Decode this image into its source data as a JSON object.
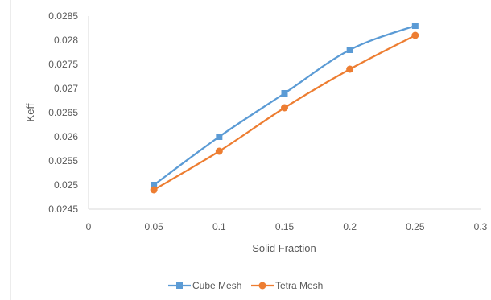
{
  "chart_data": {
    "type": "line",
    "title": "",
    "xlabel": "Solid Fraction",
    "ylabel": "Keff",
    "xlim": [
      0,
      0.3
    ],
    "ylim": [
      0.0245,
      0.0285
    ],
    "x_ticks": [
      "0",
      "0.05",
      "0.1",
      "0.15",
      "0.2",
      "0.25",
      "0.3"
    ],
    "y_ticks": [
      "0.0245",
      "0.025",
      "0.0255",
      "0.026",
      "0.0265",
      "0.027",
      "0.0275",
      "0.028",
      "0.0285"
    ],
    "grid": false,
    "legend_position": "bottom",
    "series": [
      {
        "name": "Cube Mesh",
        "color": "#5B9BD5",
        "marker": "square",
        "x": [
          0.05,
          0.1,
          0.15,
          0.2,
          0.25
        ],
        "values": [
          0.025,
          0.026,
          0.0269,
          0.0278,
          0.0283
        ]
      },
      {
        "name": "Tetra Mesh",
        "color": "#ED7D31",
        "marker": "circle",
        "x": [
          0.05,
          0.1,
          0.15,
          0.2,
          0.25
        ],
        "values": [
          0.0249,
          0.0257,
          0.0266,
          0.0274,
          0.0281
        ]
      }
    ]
  }
}
